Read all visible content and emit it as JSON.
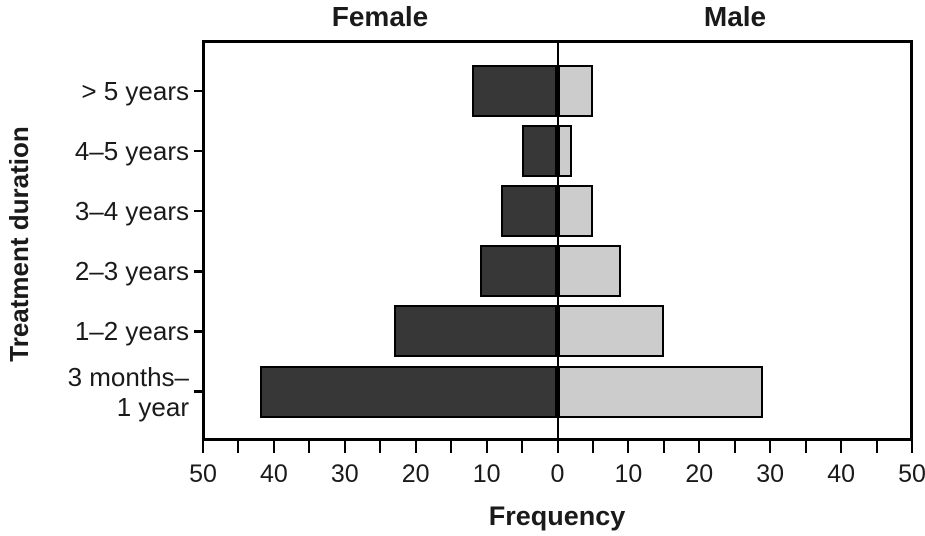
{
  "chart_data": {
    "type": "bar",
    "variant": "population-pyramid",
    "title": "",
    "xlabel": "Frequency",
    "ylabel": "Treatment duration",
    "categories": [
      [
        "> 5 years"
      ],
      [
        "4–5 years"
      ],
      [
        "3–4 years"
      ],
      [
        "2–3 years"
      ],
      [
        "1–2 years"
      ],
      [
        "3 months–",
        "1 year"
      ]
    ],
    "series": [
      {
        "name": "Female",
        "side": "left",
        "color": "#373737",
        "values": [
          12,
          5,
          8,
          11,
          23,
          42
        ]
      },
      {
        "name": "Male",
        "side": "right",
        "color": "#cccccc",
        "values": [
          5,
          2,
          5,
          9,
          15,
          29
        ]
      }
    ],
    "x_axis": {
      "center_value": 0,
      "max_each_side": 50,
      "minor_tick_step": 5,
      "major_tick_step": 10,
      "tick_labels": [
        "50",
        "40",
        "30",
        "20",
        "10",
        "0",
        "10",
        "20",
        "30",
        "40",
        "50"
      ]
    },
    "grid": false,
    "legend": "column-headers"
  },
  "colors": {
    "background": "#ffffff",
    "axis": "#000000",
    "text": "#1a1a1a",
    "female_bar": "#373737",
    "male_bar": "#cccccc",
    "bar_border": "#000000"
  }
}
